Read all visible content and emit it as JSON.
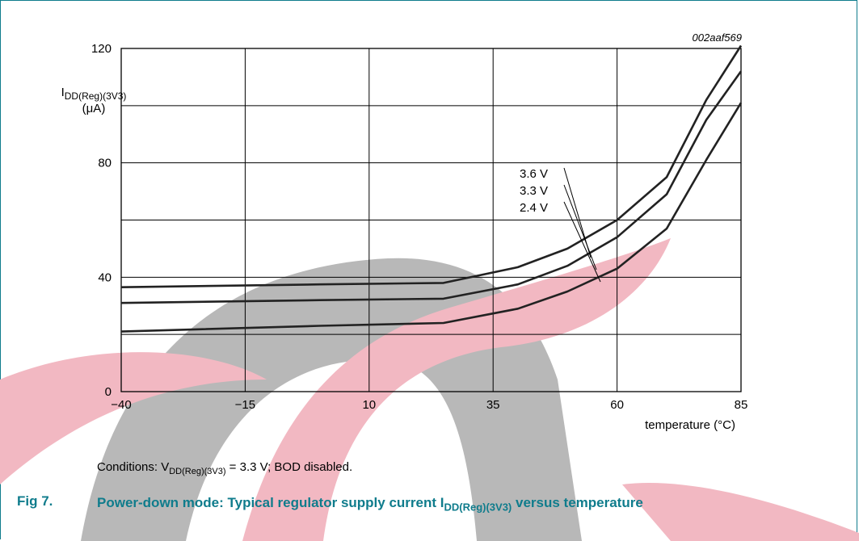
{
  "watermark_colors": {
    "pink": "#f2b8c2",
    "gray": "#b8b8b8"
  },
  "figure": {
    "number": "Fig 7.",
    "caption_pre": "Power-down mode: Typical regulator supply current I",
    "caption_sub": "DD(Reg)(3V3)",
    "caption_post": " versus temperature"
  },
  "conditions": {
    "pre": "Conditions: V",
    "sub": "DD(Reg)(3V3)",
    "post": " = 3.3 V; BOD disabled."
  },
  "chart_data": {
    "type": "line",
    "code": "002aaf569",
    "ylabel_main": "I",
    "ylabel_sub": "DD(Reg)(3V3)",
    "ylabel_unit": "(μA)",
    "xlabel": "temperature (°C)",
    "xlim": [
      -40,
      85
    ],
    "ylim": [
      0,
      120
    ],
    "x_ticks": [
      -40,
      -15,
      10,
      35,
      60,
      85
    ],
    "x_tick_labels": [
      "−40",
      "−15",
      "10",
      "35",
      "60",
      "85"
    ],
    "y_ticks": [
      0,
      40,
      80,
      120
    ],
    "y_tick_labels": [
      "0",
      "40",
      "80",
      "120"
    ],
    "grid": true,
    "series": [
      {
        "name": "3.6 V",
        "x": [
          -40,
          0,
          25,
          40,
          50,
          60,
          70,
          78,
          85
        ],
        "y": [
          36.5,
          37.5,
          38,
          43.5,
          50,
          60,
          75,
          102,
          121
        ]
      },
      {
        "name": "3.3 V",
        "x": [
          -40,
          0,
          25,
          40,
          50,
          60,
          70,
          78,
          85
        ],
        "y": [
          31,
          32,
          32.5,
          37.5,
          44,
          54,
          69,
          95,
          112
        ]
      },
      {
        "name": "2.4 V",
        "x": [
          -40,
          0,
          25,
          40,
          50,
          60,
          70,
          78,
          85
        ],
        "y": [
          21,
          23,
          24,
          29,
          35,
          43,
          57,
          81,
          101
        ]
      }
    ]
  }
}
